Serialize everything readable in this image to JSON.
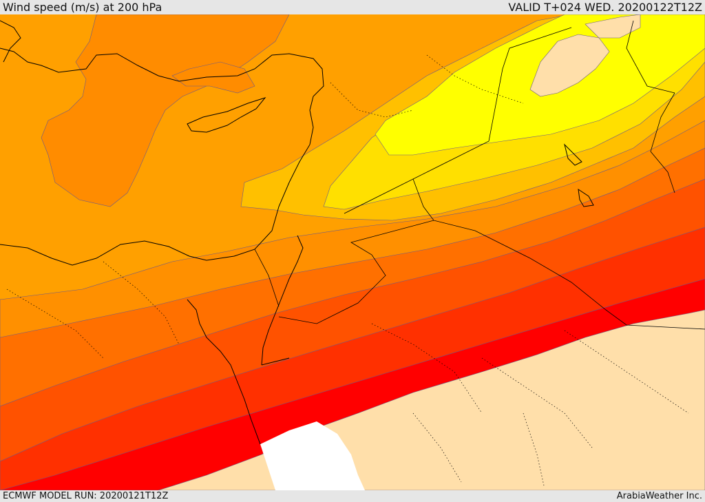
{
  "header": {
    "title": "Wind speed (m/s) at 200 hPa",
    "valid": "VALID T+024 WED. 20200122T12Z"
  },
  "footer": {
    "model_run": "ECMWF MODEL RUN: 20200121T12Z",
    "credit": "ArabiaWeather Inc."
  },
  "map": {
    "colors": {
      "band_light": "#ffdfaa",
      "band_yellow": "#ffff00",
      "band_gold": "#ffe000",
      "band_amber": "#ffc000",
      "band_orange_light": "#ffa000",
      "band_orange": "#ff8000",
      "band_orange_dark": "#ff6000",
      "band_red_orange": "#ff4000",
      "band_red": "#ff2000",
      "band_red_core": "#ff0000",
      "desert": "#ffdfaa",
      "white_area": "#ffffff"
    }
  }
}
